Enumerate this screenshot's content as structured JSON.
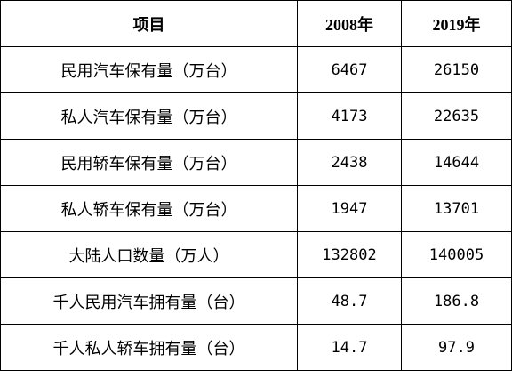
{
  "table": {
    "header": [
      "项目",
      "2008年",
      "2019年"
    ],
    "rows": [
      [
        "民用汽车保有量（万台）",
        "6467",
        "26150"
      ],
      [
        "私人汽车保有量（万台）",
        "4173",
        "22635"
      ],
      [
        "民用轿车保有量（万台）",
        "2438",
        "14644"
      ],
      [
        "私人轿车保有量（万台）",
        "1947",
        "13701"
      ],
      [
        "大陆人口数量（万人）",
        "132802",
        "140005"
      ],
      [
        "千人民用汽车拥有量（台）",
        "48.7",
        "186.8"
      ],
      [
        "千人私人轿车拥有量（台）",
        "14.7",
        "97.9"
      ]
    ]
  }
}
